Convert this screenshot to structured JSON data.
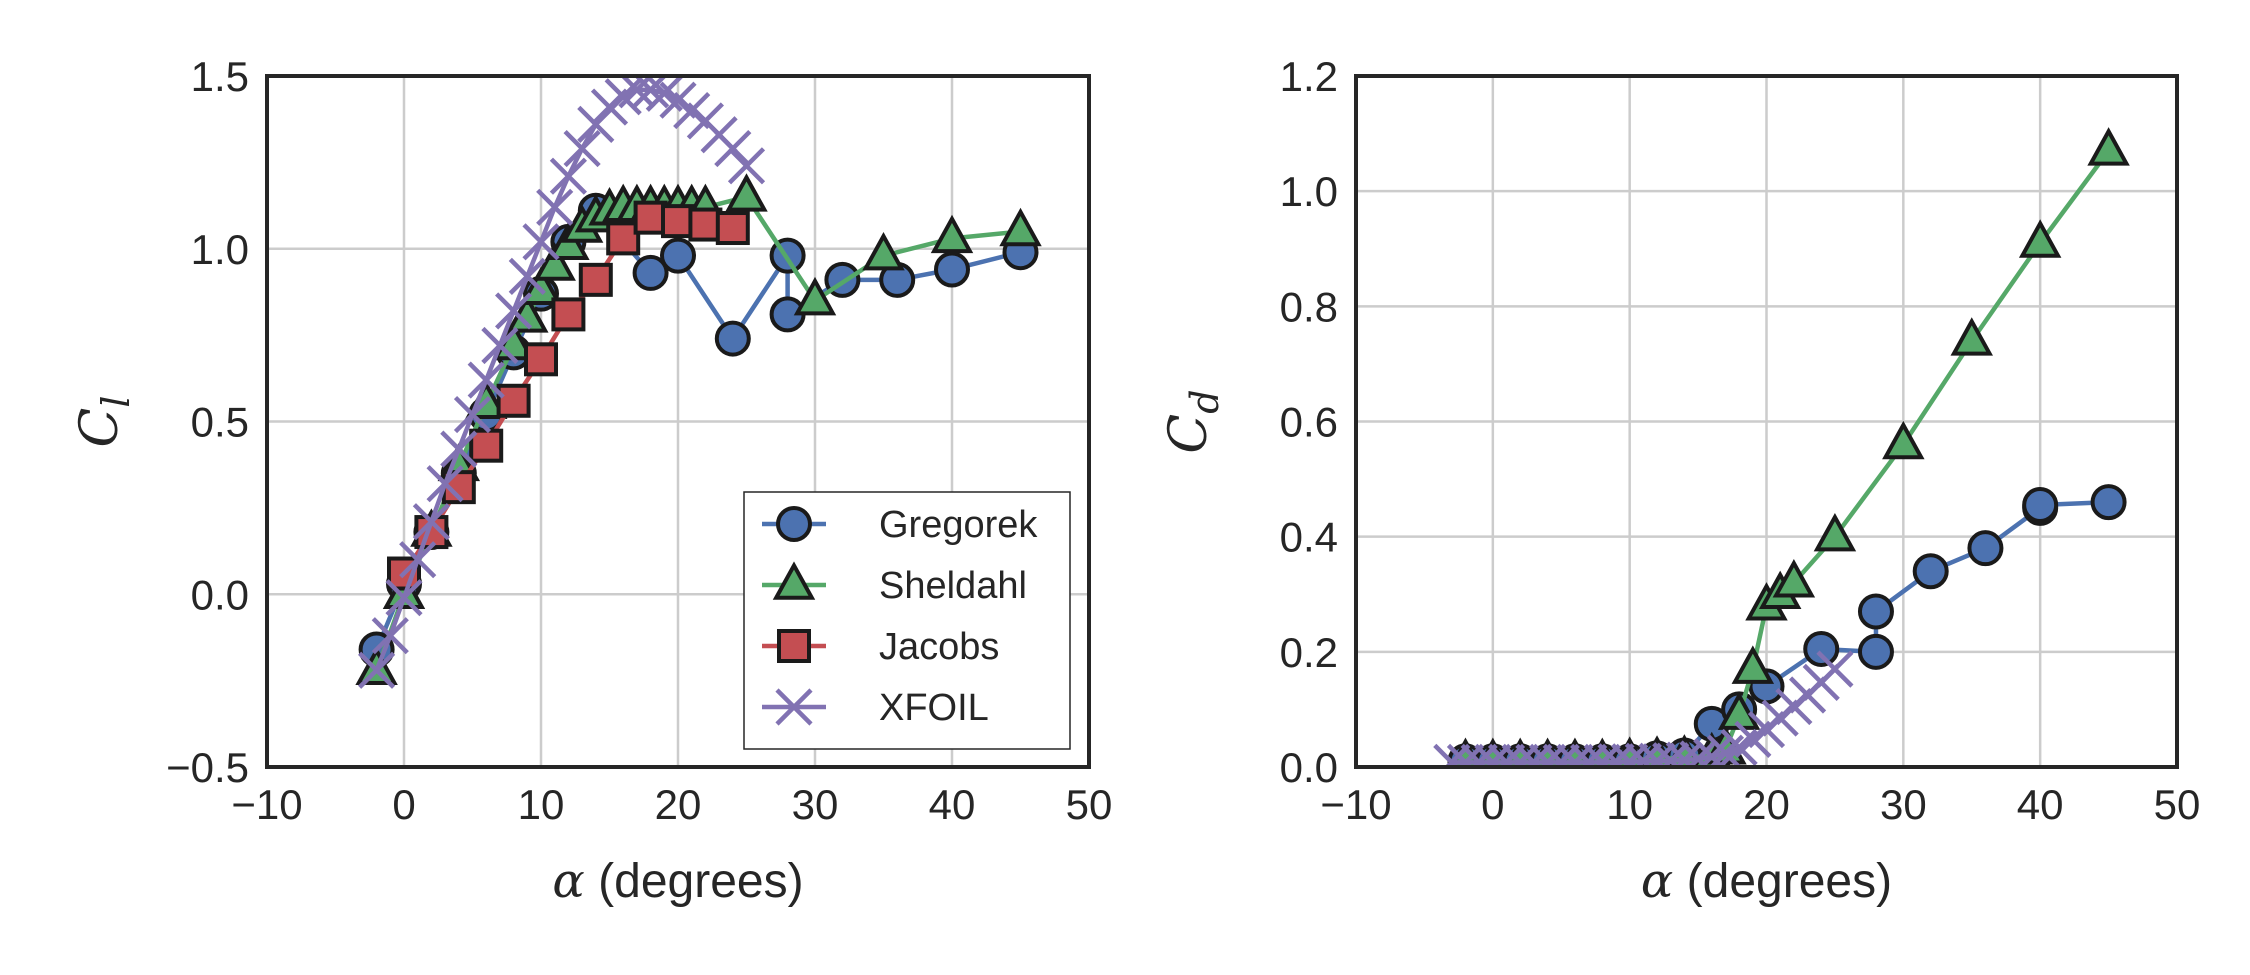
{
  "chart_data": [
    {
      "type": "line",
      "xlabel_symbol": "α",
      "xlabel_text": " (degrees)",
      "ylabel_symbol": "C",
      "ylabel_sub": "l",
      "xlim": [
        -10,
        50
      ],
      "ylim": [
        -0.5,
        1.5
      ],
      "xticks": [
        -10,
        0,
        10,
        20,
        30,
        40,
        50
      ],
      "yticks": [
        -0.5,
        0.0,
        0.5,
        1.0,
        1.5
      ],
      "xtick_labels": [
        "−10",
        "0",
        "10",
        "20",
        "30",
        "40",
        "50"
      ],
      "ytick_labels": [
        "−0.5",
        "0.0",
        "0.5",
        "1.0",
        "1.5"
      ],
      "grid": true,
      "legend_position": "lower-right",
      "series": [
        {
          "name": "Gregorek",
          "color": "#4c72b0",
          "marker": "circle",
          "x": [
            -2,
            0,
            2,
            4,
            6,
            8,
            10,
            12,
            14,
            18,
            20,
            24,
            28,
            28,
            32,
            36,
            40,
            45
          ],
          "y": [
            -0.16,
            0.03,
            0.18,
            0.35,
            0.52,
            0.7,
            0.87,
            1.02,
            1.11,
            0.93,
            0.98,
            0.74,
            0.98,
            0.81,
            0.91,
            0.91,
            0.94,
            0.99
          ]
        },
        {
          "name": "Sheldahl",
          "color": "#55a868",
          "marker": "triangle",
          "x": [
            -2,
            0,
            2,
            4,
            6,
            8,
            9,
            10,
            11,
            12,
            13,
            14,
            15,
            16,
            17,
            18,
            19,
            20,
            21,
            22,
            25,
            30,
            35,
            40,
            45
          ],
          "y": [
            -0.22,
            0.0,
            0.18,
            0.37,
            0.55,
            0.72,
            0.8,
            0.88,
            0.95,
            1.01,
            1.06,
            1.09,
            1.11,
            1.12,
            1.12,
            1.12,
            1.12,
            1.12,
            1.12,
            1.12,
            1.15,
            0.85,
            0.98,
            1.03,
            1.05
          ]
        },
        {
          "name": "Jacobs",
          "color": "#c44e52",
          "marker": "square",
          "x": [
            0,
            2,
            4,
            6,
            8,
            10,
            12,
            14,
            16,
            18,
            20,
            22,
            24
          ],
          "y": [
            0.06,
            0.18,
            0.31,
            0.43,
            0.56,
            0.68,
            0.81,
            0.91,
            1.03,
            1.09,
            1.08,
            1.07,
            1.06
          ]
        },
        {
          "name": "XFOIL",
          "color": "#8172b2",
          "marker": "x",
          "x": [
            -2,
            -1,
            0,
            1,
            2,
            3,
            4,
            5,
            6,
            7,
            8,
            9,
            10,
            11,
            12,
            13,
            14,
            15,
            16,
            17,
            18,
            19,
            20,
            21,
            22,
            23,
            24,
            25
          ],
          "y": [
            -0.22,
            -0.12,
            -0.01,
            0.1,
            0.21,
            0.32,
            0.42,
            0.52,
            0.62,
            0.72,
            0.82,
            0.92,
            1.02,
            1.12,
            1.21,
            1.29,
            1.36,
            1.41,
            1.44,
            1.46,
            1.46,
            1.45,
            1.43,
            1.4,
            1.37,
            1.33,
            1.29,
            1.24
          ]
        }
      ]
    },
    {
      "type": "line",
      "xlabel_symbol": "α",
      "xlabel_text": " (degrees)",
      "ylabel_symbol": "C",
      "ylabel_sub": "d",
      "xlim": [
        -10,
        50
      ],
      "ylim": [
        0.0,
        1.2
      ],
      "xticks": [
        -10,
        0,
        10,
        20,
        30,
        40,
        50
      ],
      "yticks": [
        0.0,
        0.2,
        0.4,
        0.6,
        0.8,
        1.0,
        1.2
      ],
      "xtick_labels": [
        "−10",
        "0",
        "10",
        "20",
        "30",
        "40",
        "50"
      ],
      "ytick_labels": [
        "0.0",
        "0.2",
        "0.4",
        "0.6",
        "0.8",
        "1.0",
        "1.2"
      ],
      "grid": true,
      "series": [
        {
          "name": "Gregorek",
          "color": "#4c72b0",
          "marker": "circle",
          "x": [
            -2,
            0,
            2,
            4,
            6,
            8,
            10,
            12,
            14,
            16,
            18,
            20,
            24,
            28,
            28,
            32,
            36,
            40,
            40,
            45
          ],
          "y": [
            0.01,
            0.01,
            0.01,
            0.01,
            0.01,
            0.01,
            0.01,
            0.015,
            0.02,
            0.075,
            0.1,
            0.14,
            0.205,
            0.2,
            0.27,
            0.34,
            0.38,
            0.45,
            0.455,
            0.46
          ]
        },
        {
          "name": "Sheldahl",
          "color": "#55a868",
          "marker": "triangle",
          "x": [
            -2,
            0,
            2,
            4,
            6,
            8,
            10,
            12,
            14,
            16,
            17,
            18,
            19,
            20,
            21,
            22,
            25,
            30,
            35,
            40,
            45
          ],
          "y": [
            0.01,
            0.01,
            0.01,
            0.01,
            0.01,
            0.01,
            0.012,
            0.014,
            0.016,
            0.02,
            0.03,
            0.09,
            0.17,
            0.28,
            0.3,
            0.32,
            0.4,
            0.56,
            0.74,
            0.91,
            1.07
          ]
        },
        {
          "name": "XFOIL",
          "color": "#8172b2",
          "marker": "x",
          "x": [
            -3,
            -2,
            -1,
            0,
            1,
            2,
            3,
            4,
            5,
            6,
            7,
            8,
            9,
            10,
            11,
            12,
            13,
            14,
            15,
            16,
            17,
            18,
            19,
            20,
            21,
            22,
            23,
            24,
            25
          ],
          "y": [
            0.008,
            0.008,
            0.008,
            0.008,
            0.008,
            0.008,
            0.008,
            0.008,
            0.008,
            0.008,
            0.008,
            0.008,
            0.009,
            0.009,
            0.01,
            0.01,
            0.011,
            0.012,
            0.014,
            0.018,
            0.024,
            0.034,
            0.048,
            0.065,
            0.085,
            0.105,
            0.125,
            0.147,
            0.17
          ]
        }
      ]
    }
  ]
}
